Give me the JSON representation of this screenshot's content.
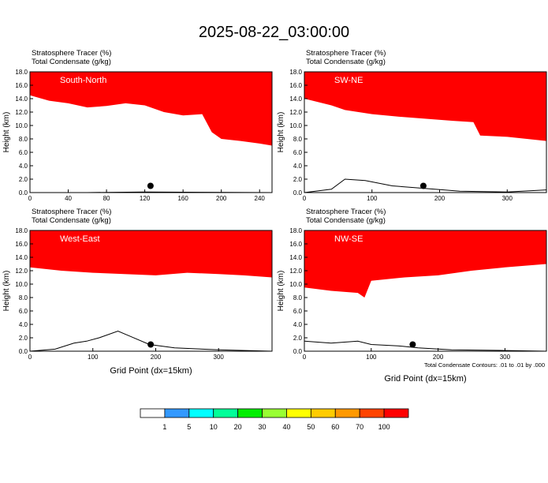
{
  "title": "2025-08-22_03:00:00",
  "colorbar": {
    "labels": [
      "1",
      "5",
      "10",
      "20",
      "30",
      "40",
      "50",
      "60",
      "70",
      "100"
    ],
    "colors": [
      "#ffffff",
      "#3399ff",
      "#00ffff",
      "#00ff99",
      "#00ee00",
      "#99ff33",
      "#ffff00",
      "#ffcc00",
      "#ff9900",
      "#ff4400",
      "#ff0000"
    ]
  },
  "chart_data": [
    {
      "type": "heatmap",
      "panel_label": "South-North",
      "header_line1": "Stratosphere Tracer   (%)",
      "header_line2": "Total Condensate   (g/kg)",
      "ylabel": "Height (km)",
      "xlabel": "",
      "xlim": [
        0,
        253
      ],
      "ylim": [
        0,
        18
      ],
      "xticks": [
        "0",
        "40",
        "80",
        "120",
        "160",
        "200",
        "240"
      ],
      "yticks": [
        "0.0",
        "2.0",
        "4.0",
        "6.0",
        "8.0",
        "10.0",
        "12.0",
        "14.0",
        "16.0",
        "18.0"
      ],
      "footnote": "",
      "tracer_boundary": [
        [
          0,
          16
        ],
        [
          20,
          15.2
        ],
        [
          40,
          14.8
        ],
        [
          60,
          14.2
        ],
        [
          80,
          14.4
        ],
        [
          100,
          14.8
        ],
        [
          120,
          14.5
        ],
        [
          140,
          13.5
        ],
        [
          160,
          13.0
        ],
        [
          180,
          13.2
        ],
        [
          190,
          10.5
        ],
        [
          200,
          9.5
        ],
        [
          220,
          9.2
        ],
        [
          240,
          8.8
        ],
        [
          253,
          8.5
        ]
      ],
      "terrain": [
        [
          0,
          0
        ],
        [
          60,
          0
        ],
        [
          120,
          0.1
        ],
        [
          180,
          0.05
        ],
        [
          253,
          0
        ]
      ],
      "marker": {
        "x": 126,
        "y": 1.0
      }
    },
    {
      "type": "heatmap",
      "panel_label": "SW-NE",
      "header_line1": "Stratosphere Tracer   (%)",
      "header_line2": "Total Condensate   (g/kg)",
      "ylabel": "Height (km)",
      "xlabel": "",
      "xlim": [
        0,
        358
      ],
      "ylim": [
        0,
        18
      ],
      "xticks": [
        "0",
        "100",
        "200",
        "300"
      ],
      "yticks": [
        "0.0",
        "2.0",
        "4.0",
        "6.0",
        "8.0",
        "10.0",
        "12.0",
        "14.0",
        "16.0",
        "18.0"
      ],
      "footnote": "",
      "tracer_boundary": [
        [
          0,
          15.5
        ],
        [
          40,
          14.5
        ],
        [
          60,
          13.8
        ],
        [
          100,
          13.2
        ],
        [
          140,
          12.8
        ],
        [
          180,
          12.5
        ],
        [
          220,
          12.2
        ],
        [
          250,
          12.0
        ],
        [
          260,
          10.0
        ],
        [
          300,
          9.8
        ],
        [
          358,
          9.2
        ]
      ],
      "terrain": [
        [
          0,
          0
        ],
        [
          40,
          0.5
        ],
        [
          60,
          2.0
        ],
        [
          90,
          1.8
        ],
        [
          130,
          1.0
        ],
        [
          180,
          0.6
        ],
        [
          230,
          0.2
        ],
        [
          300,
          0.1
        ],
        [
          358,
          0.4
        ]
      ],
      "marker": {
        "x": 176,
        "y": 1.0
      }
    },
    {
      "type": "heatmap",
      "panel_label": "West-East",
      "header_line1": "Stratosphere Tracer   (%)",
      "header_line2": "Total Condensate   (g/kg)",
      "ylabel": "Height (km)",
      "xlabel": "Grid Point (dx=15km)",
      "xlim": [
        0,
        385
      ],
      "ylim": [
        0,
        18
      ],
      "xticks": [
        "0",
        "100",
        "200",
        "300"
      ],
      "yticks": [
        "0.0",
        "2.0",
        "4.0",
        "6.0",
        "8.0",
        "10.0",
        "12.0",
        "14.0",
        "16.0",
        "18.0"
      ],
      "footnote": "",
      "tracer_boundary": [
        [
          0,
          14.0
        ],
        [
          50,
          13.5
        ],
        [
          100,
          13.2
        ],
        [
          150,
          13.0
        ],
        [
          200,
          12.8
        ],
        [
          250,
          13.2
        ],
        [
          300,
          13.0
        ],
        [
          340,
          12.8
        ],
        [
          385,
          12.5
        ]
      ],
      "terrain": [
        [
          0,
          0
        ],
        [
          40,
          0.3
        ],
        [
          70,
          1.2
        ],
        [
          90,
          1.5
        ],
        [
          110,
          2.0
        ],
        [
          140,
          3.0
        ],
        [
          160,
          2.2
        ],
        [
          190,
          1.0
        ],
        [
          230,
          0.5
        ],
        [
          300,
          0.2
        ],
        [
          385,
          0
        ]
      ],
      "marker": {
        "x": 192,
        "y": 1.0
      }
    },
    {
      "type": "heatmap",
      "panel_label": "NW-SE",
      "header_line1": "Stratosphere Tracer   (%)",
      "header_line2": "Total Condensate   (g/kg)",
      "ylabel": "Height (km)",
      "xlabel": "Grid Point (dx=15km)",
      "xlim": [
        0,
        362
      ],
      "ylim": [
        0,
        18
      ],
      "xticks": [
        "0",
        "100",
        "200",
        "300"
      ],
      "yticks": [
        "0.0",
        "2.0",
        "4.0",
        "6.0",
        "8.0",
        "10.0",
        "12.0",
        "14.0",
        "16.0",
        "18.0"
      ],
      "footnote": "Total Condensate Contours: .01 to .01 by .000",
      "tracer_boundary": [
        [
          0,
          11.0
        ],
        [
          40,
          10.5
        ],
        [
          80,
          10.2
        ],
        [
          90,
          9.5
        ],
        [
          100,
          12.0
        ],
        [
          150,
          12.5
        ],
        [
          200,
          12.8
        ],
        [
          250,
          13.5
        ],
        [
          300,
          14.0
        ],
        [
          362,
          14.5
        ]
      ],
      "terrain": [
        [
          0,
          1.5
        ],
        [
          40,
          1.2
        ],
        [
          80,
          1.5
        ],
        [
          100,
          1.0
        ],
        [
          140,
          0.8
        ],
        [
          170,
          0.5
        ],
        [
          220,
          0.2
        ],
        [
          300,
          0.1
        ],
        [
          362,
          0
        ]
      ],
      "marker": {
        "x": 162,
        "y": 1.0
      }
    }
  ]
}
